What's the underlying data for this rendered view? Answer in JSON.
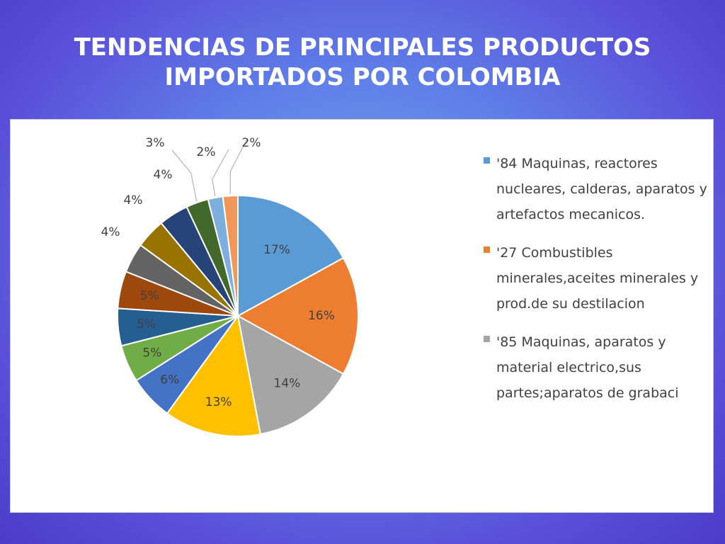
{
  "slide": {
    "title_line1": "TENDENCIAS DE PRINCIPALES PRODUCTOS",
    "title_line2": "IMPORTADOS POR COLOMBIA"
  },
  "chart_data": {
    "type": "pie",
    "title": "",
    "legend_position": "right",
    "slices": [
      {
        "label": "'84 Maquinas, reactores nucleares, calderas, aparatos y artefactos mecanicos.",
        "value": 17,
        "text": "17%",
        "color": "#5b9bd5"
      },
      {
        "label": "'27 Combustibles minerales,aceites minerales y prod.de su destilacion",
        "value": 16,
        "text": "16%",
        "color": "#ed7d31"
      },
      {
        "label": "'85 Maquinas, aparatos y material electrico,sus partes;aparatos de grabaci",
        "value": 14,
        "text": "14%",
        "color": "#a5a5a5"
      },
      {
        "label": "",
        "value": 13,
        "text": "13%",
        "color": "#ffc000"
      },
      {
        "label": "",
        "value": 6,
        "text": "6%",
        "color": "#4472c4"
      },
      {
        "label": "",
        "value": 5,
        "text": "5%",
        "color": "#70ad47"
      },
      {
        "label": "",
        "value": 5,
        "text": "5%",
        "color": "#255e91"
      },
      {
        "label": "",
        "value": 5,
        "text": "5%",
        "color": "#9e480e"
      },
      {
        "label": "",
        "value": 4,
        "text": "4%",
        "color": "#636363"
      },
      {
        "label": "",
        "value": 4,
        "text": "4%",
        "color": "#997300"
      },
      {
        "label": "",
        "value": 4,
        "text": "4%",
        "color": "#264478"
      },
      {
        "label": "",
        "value": 3,
        "text": "3%",
        "color": "#43682b"
      },
      {
        "label": "",
        "value": 2,
        "text": "2%",
        "color": "#7cafdd"
      },
      {
        "label": "",
        "value": 2,
        "text": "2%",
        "color": "#f1975a"
      }
    ]
  }
}
